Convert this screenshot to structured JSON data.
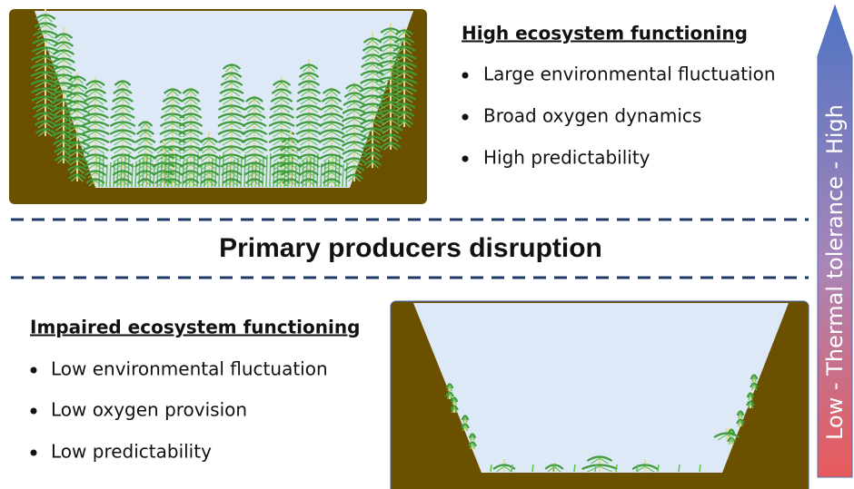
{
  "top_panel": {
    "heading": "High ecosystem functioning",
    "bullets": [
      "Large environmental fluctuation",
      "Broad oxygen dynamics",
      "High predictability"
    ]
  },
  "center_title": "Primary producers disruption",
  "bottom_panel": {
    "heading": "Impaired ecosystem functioning",
    "bullets": [
      "Low environmental fluctuation",
      "Low oxygen provision",
      "Low predictability"
    ]
  },
  "arrow": {
    "label": "Low  -  Thermal tolerance  -  High"
  }
}
